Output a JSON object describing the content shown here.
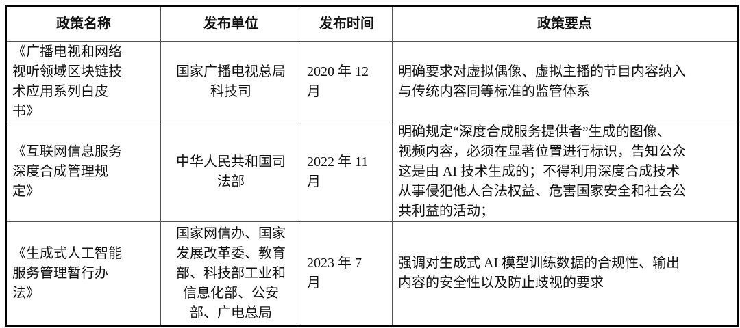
{
  "headers": [
    "政策名称",
    "发布单位",
    "发布时间",
    "政策要点"
  ],
  "rows": [
    {
      "name": [
        "《广播电视和网络",
        "视听领域区块链技",
        "术应用系列白皮",
        "书》"
      ],
      "issuer": [
        "国家广播电视总局",
        "科技司"
      ],
      "date": [
        "2020 年 12",
        "月"
      ],
      "points": [
        "明确要求对虚拟偶像、虚拟主播的节目内容纳入",
        "与传统内容同等标准的监管体系"
      ]
    },
    {
      "name": [
        "《互联网信息服务",
        "深度合成管理规",
        "定》"
      ],
      "issuer": [
        "中华人民共和国司",
        "法部"
      ],
      "date": [
        "2022 年 11",
        "月"
      ],
      "points": [
        "明确规定“深度合成服务提供者”生成的图像、",
        "视频内容，必须在显著位置进行标识，告知公众",
        "这是由 AI 技术生成的；不得利用深度合成技术",
        "从事侵犯他人合法权益、危害国家安全和社会公",
        "共利益的活动；"
      ]
    },
    {
      "name": [
        "《生成式人工智能",
        "服务管理暂行办",
        "法》"
      ],
      "issuer": [
        "国家网信办、国家",
        "发展改革委、教育",
        "部、科技部工业和",
        "信息化部、公安",
        "部、广电总局"
      ],
      "date": [
        "2023 年 7",
        "月"
      ],
      "points": [
        "强调对生成式 AI 模型训练数据的合规性、输出",
        "内容的安全性以及防止歧视的要求"
      ]
    }
  ]
}
